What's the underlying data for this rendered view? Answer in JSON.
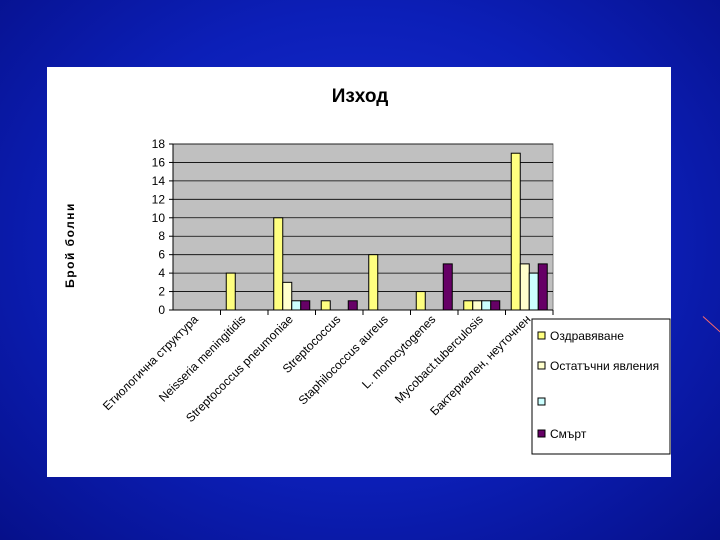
{
  "chart_data": {
    "type": "bar",
    "title": "Изход",
    "xlabel": "",
    "ylabel": "Брой болни",
    "ylim": [
      0,
      18
    ],
    "yticks": [
      0,
      2,
      4,
      6,
      8,
      10,
      12,
      14,
      16,
      18
    ],
    "categories": [
      "Етиологична структура",
      "Neisseria meningitidis",
      "Streptococcus pneumoniae",
      "Streptococcus",
      "Staphilococcus aureus",
      "L. monocytogenes",
      "Mycobact.tuberculosis",
      "Бактериален, неуточнен"
    ],
    "series": [
      {
        "name": "Оздравяване",
        "color": "#ffff80",
        "values": [
          0,
          4,
          10,
          1,
          6,
          2,
          1,
          17
        ]
      },
      {
        "name": "Остатъчни явления",
        "color": "#ffffcc",
        "values": [
          0,
          0,
          3,
          0,
          0,
          0,
          1,
          5
        ]
      },
      {
        "name": "",
        "color": "#ccffff",
        "values": [
          0,
          0,
          1,
          0,
          0,
          0,
          1,
          4
        ]
      },
      {
        "name": "Смърт",
        "color": "#660066",
        "values": [
          0,
          0,
          1,
          1,
          0,
          5,
          1,
          5
        ]
      }
    ],
    "grid": true,
    "plot_background": "#c0c0c0",
    "legend_position": "right"
  }
}
